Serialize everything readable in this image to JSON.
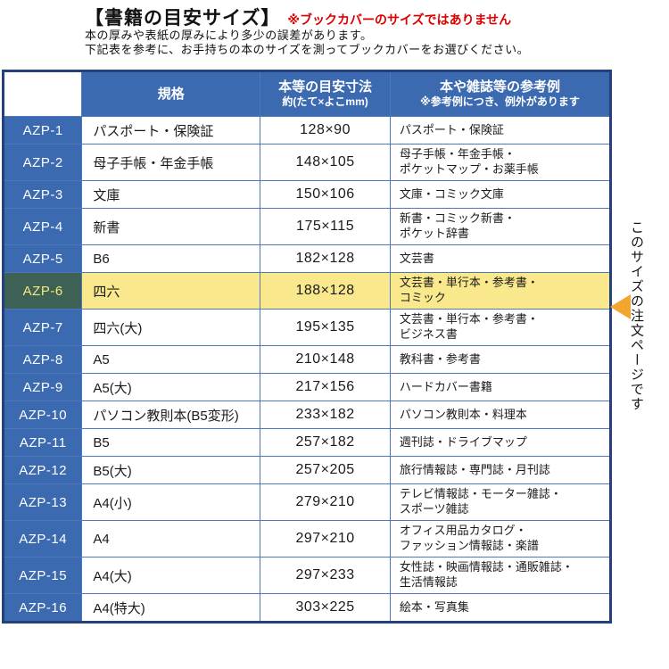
{
  "page": {
    "title": "【書籍の目安サイズ】",
    "title_note": "※ブックカバーのサイズではありません",
    "description_lines": [
      "本の厚みや表紙の厚みにより多少の誤差があります。",
      "下記表を参考に、お手持ちの本のサイズを測ってブックカバーをお選びください。"
    ]
  },
  "colors": {
    "header_blue": "#3b6ab1",
    "border_navy": "#24417e",
    "grid_blue": "#4c79bd",
    "highlight_yellow": "#f9e98c",
    "highlight_label_green": "#3e6156",
    "highlight_label_text": "#f7e87e",
    "arrow_orange": "#f2a52f",
    "note_red": "#dd0000"
  },
  "table": {
    "headers": {
      "corner": "",
      "kikaku": "規格",
      "size_line1": "本等の目安寸法",
      "size_line2": "約(たて×よこmm)",
      "ref_line1": "本や雑誌等の参考例",
      "ref_line2": "※参考例につき、例外があります"
    },
    "rows": [
      {
        "code": "AZP-1",
        "kikaku": "パスポート・保険証",
        "size": "128×90",
        "ref": "パスポート・保険証",
        "highlight": false
      },
      {
        "code": "AZP-2",
        "kikaku": "母子手帳・年金手帳",
        "size": "148×105",
        "ref": "母子手帳・年金手帳・\nポケットマップ・お薬手帳",
        "highlight": false
      },
      {
        "code": "AZP-3",
        "kikaku": "文庫",
        "size": "150×106",
        "ref": "文庫・コミック文庫",
        "highlight": false
      },
      {
        "code": "AZP-4",
        "kikaku": "新書",
        "size": "175×115",
        "ref": "新書・コミック新書・\nポケット辞書",
        "highlight": false
      },
      {
        "code": "AZP-5",
        "kikaku": "B6",
        "size": "182×128",
        "ref": "文芸書",
        "highlight": false
      },
      {
        "code": "AZP-6",
        "kikaku": "四六",
        "size": "188×128",
        "ref": "文芸書・単行本・参考書・\nコミック",
        "highlight": true
      },
      {
        "code": "AZP-7",
        "kikaku": "四六(大)",
        "size": "195×135",
        "ref": "文芸書・単行本・参考書・\nビジネス書",
        "highlight": false
      },
      {
        "code": "AZP-8",
        "kikaku": "A5",
        "size": "210×148",
        "ref": "教科書・参考書",
        "highlight": false
      },
      {
        "code": "AZP-9",
        "kikaku": "A5(大)",
        "size": "217×156",
        "ref": "ハードカバー書籍",
        "highlight": false
      },
      {
        "code": "AZP-10",
        "kikaku": "パソコン教則本(B5変形)",
        "size": "233×182",
        "ref": "パソコン教則本・料理本",
        "highlight": false
      },
      {
        "code": "AZP-11",
        "kikaku": "B5",
        "size": "257×182",
        "ref": "週刊誌・ドライブマップ",
        "highlight": false
      },
      {
        "code": "AZP-12",
        "kikaku": "B5(大)",
        "size": "257×205",
        "ref": "旅行情報誌・専門誌・月刊誌",
        "highlight": false
      },
      {
        "code": "AZP-13",
        "kikaku": "A4(小)",
        "size": "279×210",
        "ref": "テレビ情報誌・モーター雑誌・\nスポーツ雑誌",
        "highlight": false
      },
      {
        "code": "AZP-14",
        "kikaku": "A4",
        "size": "297×210",
        "ref": "オフィス用品カタログ・\nファッション情報誌・楽譜",
        "highlight": false
      },
      {
        "code": "AZP-15",
        "kikaku": "A4(大)",
        "size": "297×233",
        "ref": "女性誌・映画情報誌・通販雑誌・\n生活情報誌",
        "highlight": false
      },
      {
        "code": "AZP-16",
        "kikaku": "A4(特大)",
        "size": "303×225",
        "ref": "絵本・写真集",
        "highlight": false
      }
    ]
  },
  "side_note": {
    "text": "このサイズの注文ページです",
    "arrow_icon": "left-triangle"
  }
}
